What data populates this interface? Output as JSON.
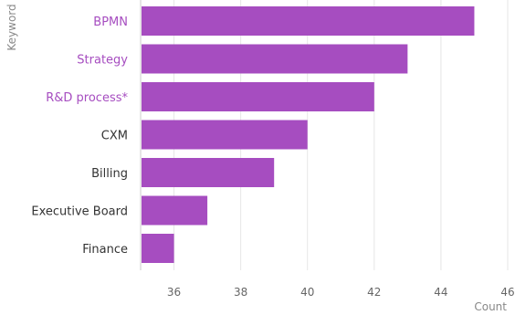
{
  "chart_data": {
    "type": "bar",
    "orientation": "horizontal",
    "categories": [
      "BPMN",
      "Strategy",
      "R&D process*",
      "CXM",
      "Billing",
      "Executive Board",
      "Finance"
    ],
    "values": [
      45,
      43,
      42,
      40,
      39,
      37,
      36
    ],
    "highlighted_categories": [
      "BPMN",
      "Strategy",
      "R&D process*"
    ],
    "xlabel": "Count",
    "ylabel": "Keyword",
    "xlim": [
      35,
      46
    ],
    "xticks": [
      "36",
      "38",
      "40",
      "42",
      "44",
      "46"
    ],
    "grid": true,
    "colors": {
      "bar": "#a64dc0",
      "highlight_label": "#a64dc0",
      "label": "#333333",
      "grid": "#e6e6e6",
      "axis": "#cccccc"
    }
  }
}
